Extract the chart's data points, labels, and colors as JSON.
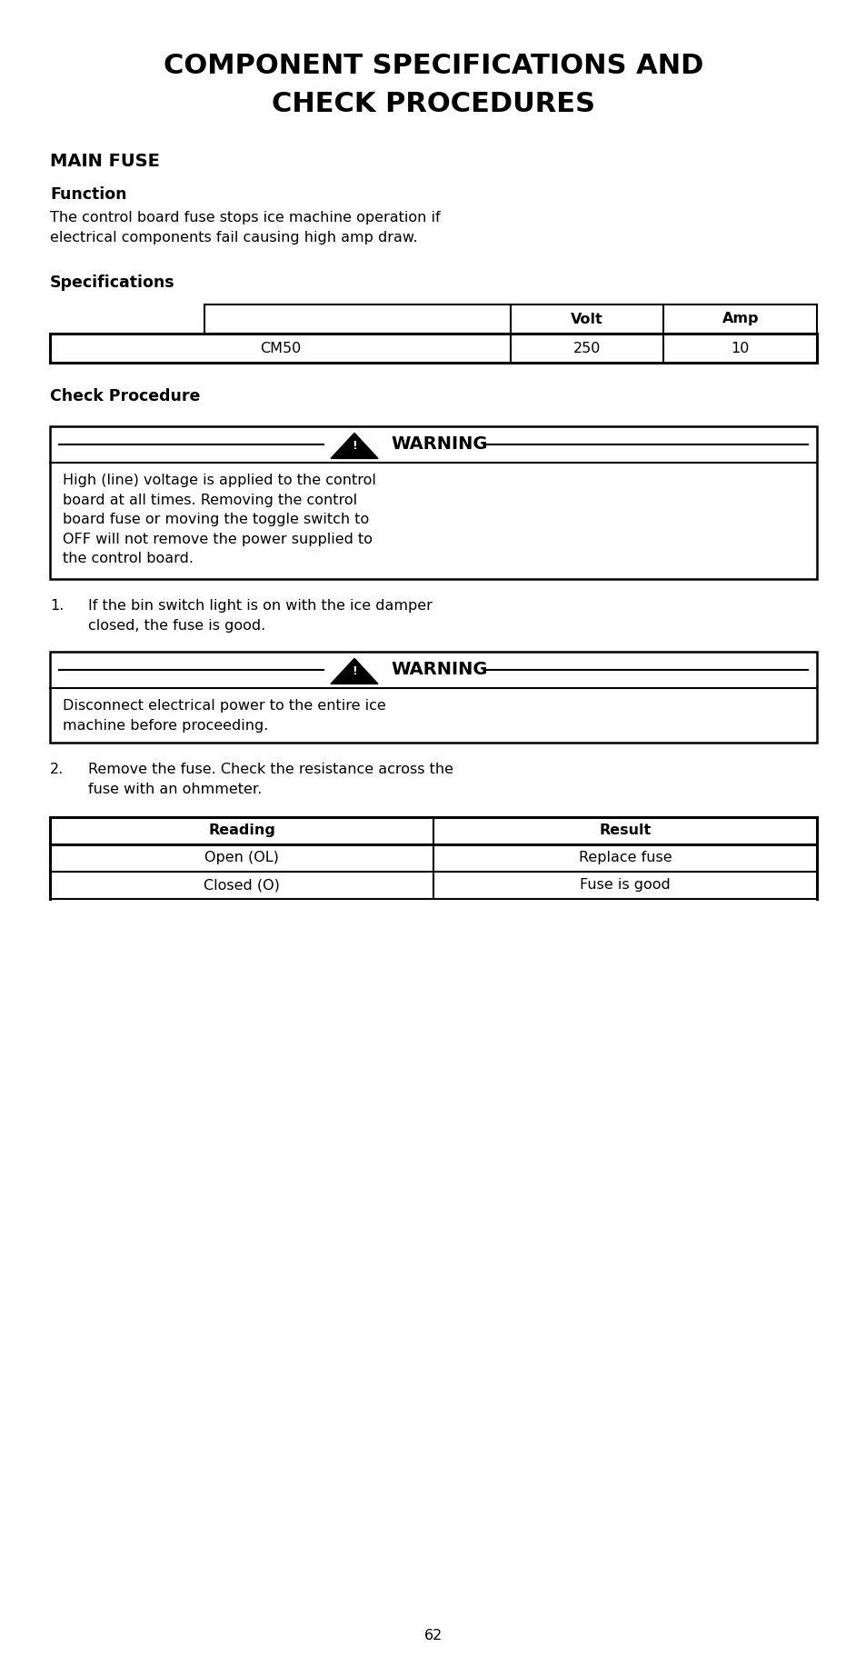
{
  "title_line1": "COMPONENT SPECIFICATIONS AND",
  "title_line2": "CHECK PROCEDURES",
  "section_main_fuse": "MAIN FUSE",
  "section_function": "Function",
  "function_text": "The control board fuse stops ice machine operation if\nelectrical components fail causing high amp draw.",
  "section_specifications": "Specifications",
  "spec_headers": [
    "",
    "Volt",
    "Amp"
  ],
  "spec_row": [
    "CM50",
    "250",
    "10"
  ],
  "section_check": "Check Procedure",
  "warning1_title": "WARNING",
  "warning1_text": "High (line) voltage is applied to the control\nboard at all times. Removing the control\nboard fuse or moving the toggle switch to\nOFF will not remove the power supplied to\nthe control board.",
  "step1_text": "If the bin switch light is on with the ice damper\nclosed, the fuse is good.",
  "warning2_title": "WARNING",
  "warning2_text": "Disconnect electrical power to the entire ice\nmachine before proceeding.",
  "step2_text": "Remove the fuse. Check the resistance across the\nfuse with an ohmmeter.",
  "result_headers": [
    "Reading",
    "Result"
  ],
  "result_rows": [
    [
      "Open (OL)",
      "Replace fuse"
    ],
    [
      "Closed (O)",
      "Fuse is good"
    ]
  ],
  "page_number": "62",
  "bg_color": "#ffffff",
  "text_color": "#000000"
}
